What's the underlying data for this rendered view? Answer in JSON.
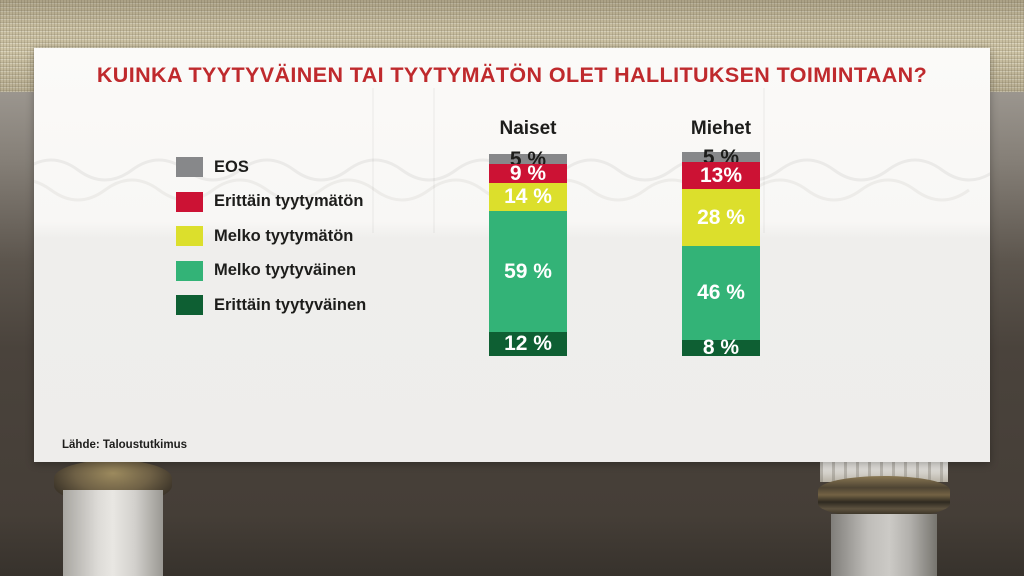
{
  "chart_data": {
    "type": "bar",
    "stacked": true,
    "orientation": "vertical",
    "title": "KUINKA TYYTYVÄINEN TAI TYYTYMÄTÖN OLET HALLITUKSEN TOIMINTAAN?",
    "title_color": "#bf2a2d",
    "unit": "%",
    "ylim": [
      0,
      100
    ],
    "grid": false,
    "legend_position": "left",
    "categories": [
      "Naiset",
      "Miehet"
    ],
    "series": [
      {
        "name": "EOS",
        "color": "#87888a",
        "label_color": "#1d1d1b",
        "values": [
          5,
          5
        ],
        "display_labels": [
          "5 %",
          "5 %"
        ]
      },
      {
        "name": "Erittäin tyytymätön",
        "color": "#cc1234",
        "label_color": "#ffffff",
        "values": [
          9,
          13
        ],
        "display_labels": [
          "9 %",
          "13%"
        ]
      },
      {
        "name": "Melko tyytymätön",
        "color": "#dcdf2c",
        "label_color": "#ffffff",
        "values": [
          14,
          28
        ],
        "display_labels": [
          "14 %",
          "28 %"
        ]
      },
      {
        "name": "Melko tyytyväinen",
        "color": "#33b377",
        "label_color": "#ffffff",
        "values": [
          59,
          46
        ],
        "display_labels": [
          "59 %",
          "46 %"
        ]
      },
      {
        "name": "Erittäin tyytyväinen",
        "color": "#0e5f33",
        "label_color": "#ffffff",
        "values": [
          12,
          8
        ],
        "display_labels": [
          "12 %",
          "8 %"
        ]
      }
    ],
    "source": "Lähde: Taloustutkimus"
  }
}
